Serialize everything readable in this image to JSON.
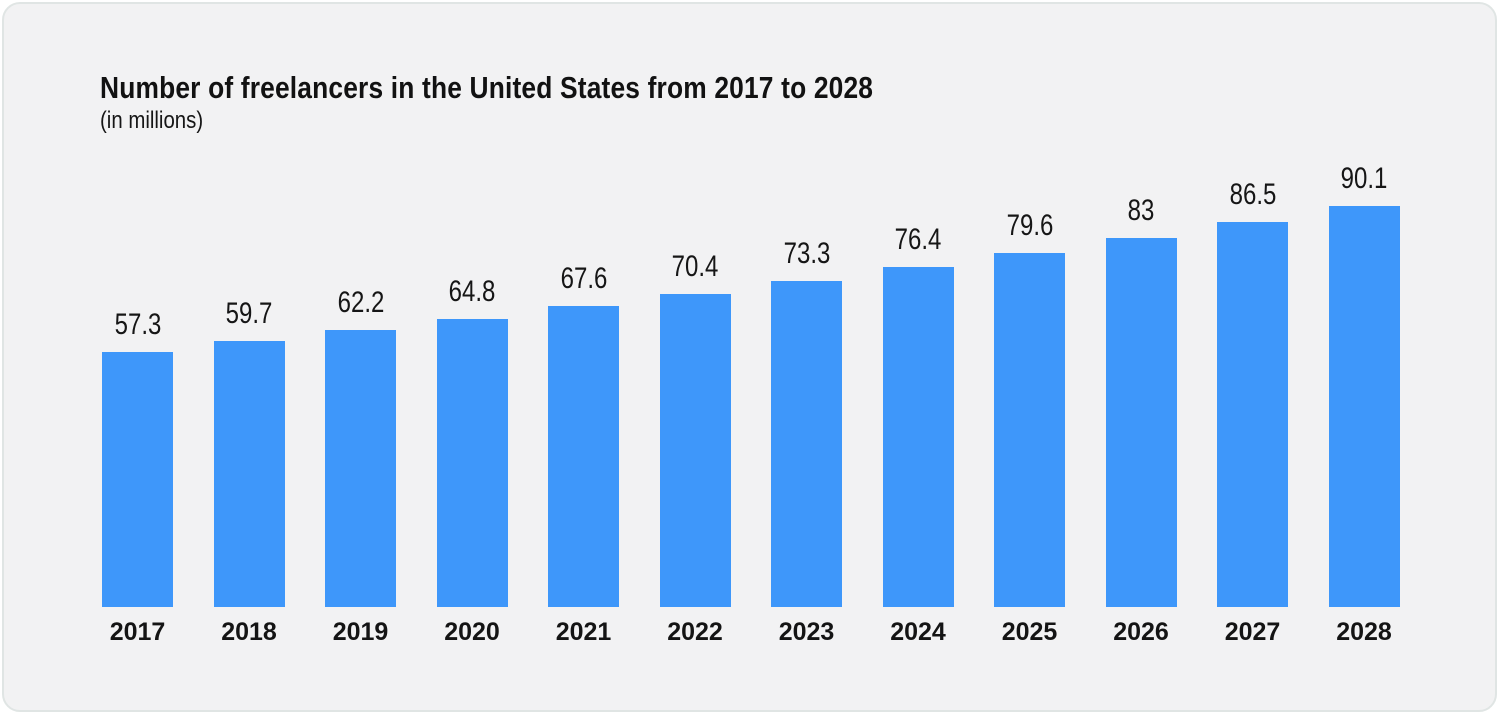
{
  "page": {
    "background": "#FFFFFF"
  },
  "card": {
    "background": "#F2F2F3",
    "border_color": "#E0E5E4"
  },
  "header": {
    "title": "Number of freelancers in the United States from 2017 to 2028",
    "subtitle": "(in millions)"
  },
  "chart_data": {
    "type": "bar",
    "orientation": "vertical",
    "title": "Number of freelancers in the United States from 2017 to 2028",
    "subtitle": "(in millions)",
    "categories": [
      "2017",
      "2018",
      "2019",
      "2020",
      "2021",
      "2022",
      "2023",
      "2024",
      "2025",
      "2026",
      "2027",
      "2028"
    ],
    "values": [
      57.3,
      59.7,
      62.2,
      64.8,
      67.6,
      70.4,
      73.3,
      76.4,
      79.6,
      83,
      86.5,
      90.1
    ],
    "value_labels": [
      "57.3",
      "59.7",
      "62.2",
      "64.8",
      "67.6",
      "70.4",
      "73.3",
      "76.4",
      "79.6",
      "83",
      "86.5",
      "90.1"
    ],
    "xlabel": "",
    "ylabel": "",
    "ylim": [
      0,
      100
    ],
    "grid": false,
    "legend": false,
    "axis_lines": false,
    "value_labels_position": "above-bars",
    "bar_color": "#3E97FA",
    "label_color": "#161616",
    "background_color": "#F2F2F3"
  }
}
